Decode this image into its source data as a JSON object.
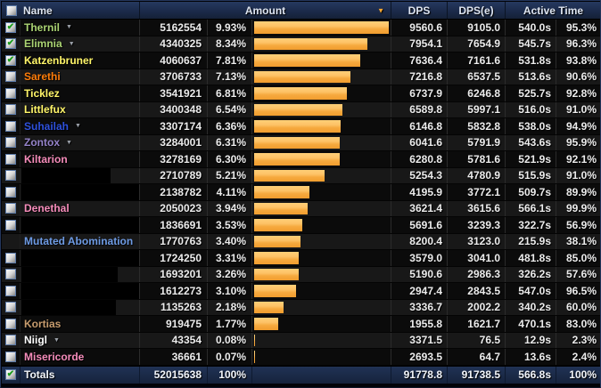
{
  "header": {
    "name": "Name",
    "amount": "Amount",
    "dps": "DPS",
    "dpse": "DPS(e)",
    "active_time": "Active Time"
  },
  "icons": {
    "check": "✔",
    "sort_arrow": "▼",
    "expand_arrow": "▼"
  },
  "colors": {
    "bar_orange": "#F6A93E",
    "header_bg": "#1B2A4A",
    "totals_bg": "#1A2946",
    "row_odd": "#0B0B0B",
    "row_even": "#181818"
  },
  "bar_max_pct": 9.93,
  "rows": [
    {
      "name": "Thernil",
      "color": "#ABD473",
      "checkbox": "checked",
      "expandable": true,
      "amount": "5162554",
      "pct": "9.93%",
      "dps": "9560.6",
      "dpse": "9105.0",
      "time": "540.0s",
      "apct": "95.3%"
    },
    {
      "name": "Elimnia",
      "color": "#ABD473",
      "checkbox": "checked",
      "expandable": true,
      "amount": "4340325",
      "pct": "8.34%",
      "dps": "7954.1",
      "dpse": "7654.9",
      "time": "545.7s",
      "apct": "96.3%"
    },
    {
      "name": "Katzenbruner",
      "color": "#FFF569",
      "checkbox": "checked",
      "expandable": false,
      "amount": "4060637",
      "pct": "7.81%",
      "dps": "7636.4",
      "dpse": "7161.6",
      "time": "531.8s",
      "apct": "93.8%"
    },
    {
      "name": "Sarethi",
      "color": "#FF7D0A",
      "checkbox": "unchecked",
      "expandable": false,
      "amount": "3706733",
      "pct": "7.13%",
      "dps": "7216.8",
      "dpse": "6537.5",
      "time": "513.6s",
      "apct": "90.6%"
    },
    {
      "name": "Ticklez",
      "color": "#FFF569",
      "checkbox": "unchecked",
      "expandable": false,
      "amount": "3541921",
      "pct": "6.81%",
      "dps": "6737.9",
      "dpse": "6246.8",
      "time": "525.7s",
      "apct": "92.8%"
    },
    {
      "name": "Littlefux",
      "color": "#FFF569",
      "checkbox": "unchecked",
      "expandable": false,
      "amount": "3400348",
      "pct": "6.54%",
      "dps": "6589.8",
      "dpse": "5997.1",
      "time": "516.0s",
      "apct": "91.0%"
    },
    {
      "name": "Suhailah",
      "color": "#2E51DD",
      "checkbox": "unchecked",
      "expandable": true,
      "amount": "3307174",
      "pct": "6.36%",
      "dps": "6146.8",
      "dpse": "5832.8",
      "time": "538.0s",
      "apct": "94.9%"
    },
    {
      "name": "Zontox",
      "color": "#9482C9",
      "checkbox": "unchecked",
      "expandable": true,
      "amount": "3284001",
      "pct": "6.31%",
      "dps": "6041.6",
      "dpse": "5791.9",
      "time": "543.6s",
      "apct": "95.9%"
    },
    {
      "name": "Kiltarion",
      "color": "#F58CBA",
      "checkbox": "unchecked",
      "expandable": false,
      "amount": "3278169",
      "pct": "6.30%",
      "dps": "6280.8",
      "dpse": "5781.6",
      "time": "521.9s",
      "apct": "92.1%"
    },
    {
      "name": "",
      "color": "#FFFFFF",
      "checkbox": "unchecked",
      "expandable": false,
      "redacted": true,
      "redact_w": 100,
      "amount": "2710789",
      "pct": "5.21%",
      "dps": "5254.3",
      "dpse": "4780.9",
      "time": "515.9s",
      "apct": "91.0%"
    },
    {
      "name": "",
      "color": "#FFFFFF",
      "checkbox": "unchecked",
      "expandable": false,
      "redacted": true,
      "redact_w": 133,
      "amount": "2138782",
      "pct": "4.11%",
      "dps": "4195.9",
      "dpse": "3772.1",
      "time": "509.7s",
      "apct": "89.9%"
    },
    {
      "name": "Denethal",
      "color": "#F58CBA",
      "checkbox": "unchecked",
      "expandable": false,
      "amount": "2050023",
      "pct": "3.94%",
      "dps": "3621.4",
      "dpse": "3615.6",
      "time": "566.1s",
      "apct": "99.9%"
    },
    {
      "name": "",
      "color": "#FFFFFF",
      "checkbox": "unchecked",
      "expandable": false,
      "redacted": true,
      "redact_w": 133,
      "amount": "1836691",
      "pct": "3.53%",
      "dps": "5691.6",
      "dpse": "3239.3",
      "time": "322.7s",
      "apct": "56.9%"
    },
    {
      "name": "Mutated Abomination",
      "color": "#6E9BE4",
      "checkbox": "none",
      "expandable": false,
      "amount": "1770763",
      "pct": "3.40%",
      "dps": "8200.4",
      "dpse": "3123.0",
      "time": "215.9s",
      "apct": "38.1%"
    },
    {
      "name": "",
      "color": "#FFFFFF",
      "checkbox": "unchecked",
      "expandable": false,
      "redacted": true,
      "redact_w": 133,
      "amount": "1724250",
      "pct": "3.31%",
      "dps": "3579.0",
      "dpse": "3041.0",
      "time": "481.8s",
      "apct": "85.0%"
    },
    {
      "name": "",
      "color": "#FFFFFF",
      "checkbox": "unchecked",
      "expandable": false,
      "redacted": true,
      "redact_w": 108,
      "amount": "1693201",
      "pct": "3.26%",
      "dps": "5190.6",
      "dpse": "2986.3",
      "time": "326.2s",
      "apct": "57.6%"
    },
    {
      "name": "",
      "color": "#FFFFFF",
      "checkbox": "unchecked",
      "expandable": false,
      "redacted": true,
      "redact_w": 133,
      "amount": "1612273",
      "pct": "3.10%",
      "dps": "2947.4",
      "dpse": "2843.5",
      "time": "547.0s",
      "apct": "96.5%"
    },
    {
      "name": "",
      "color": "#FFFFFF",
      "checkbox": "unchecked",
      "expandable": false,
      "redacted": true,
      "redact_w": 106,
      "amount": "1135263",
      "pct": "2.18%",
      "dps": "3336.7",
      "dpse": "2002.2",
      "time": "340.2s",
      "apct": "60.0%"
    },
    {
      "name": "Kortias",
      "color": "#C79C6E",
      "checkbox": "unchecked",
      "expandable": false,
      "amount": "919475",
      "pct": "1.77%",
      "dps": "1955.8",
      "dpse": "1621.7",
      "time": "470.1s",
      "apct": "83.0%"
    },
    {
      "name": "Niigl",
      "color": "#FFFFFF",
      "checkbox": "unchecked",
      "expandable": true,
      "amount": "43354",
      "pct": "0.08%",
      "dps": "3371.5",
      "dpse": "76.5",
      "time": "12.9s",
      "apct": "2.3%"
    },
    {
      "name": "Misericorde",
      "color": "#F58CBA",
      "checkbox": "unchecked",
      "expandable": false,
      "amount": "36661",
      "pct": "0.07%",
      "dps": "2693.5",
      "dpse": "64.7",
      "time": "13.6s",
      "apct": "2.4%"
    }
  ],
  "totals": {
    "label": "Totals",
    "amount": "52015638",
    "pct": "100%",
    "dps": "91778.8",
    "dpse": "91738.5",
    "time": "566.8s",
    "apct": "100%"
  }
}
